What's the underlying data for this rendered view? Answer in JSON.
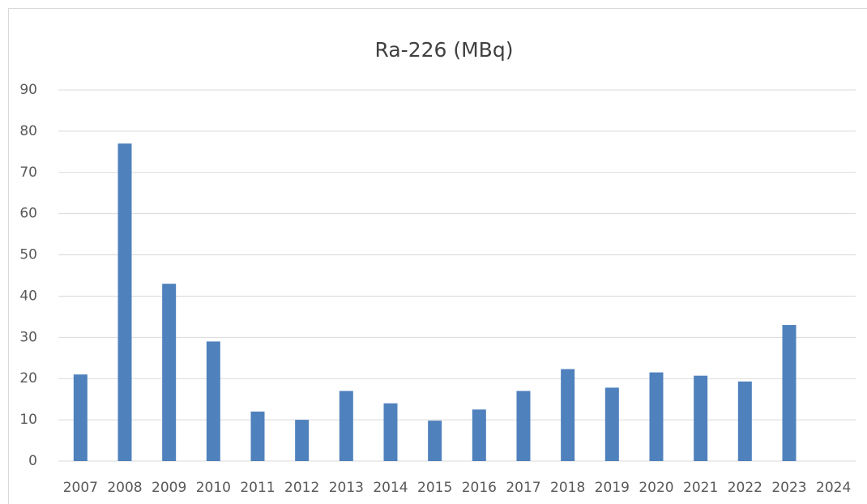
{
  "chart_data": {
    "type": "bar",
    "title": "Ra-226 (MBq)",
    "categories": [
      "2007",
      "2008",
      "2009",
      "2010",
      "2011",
      "2012",
      "2013",
      "2014",
      "2015",
      "2016",
      "2017",
      "2018",
      "2019",
      "2020",
      "2021",
      "2022",
      "2023",
      "2024"
    ],
    "values": [
      21,
      77,
      43,
      29,
      12,
      10,
      17,
      14,
      9.8,
      12.5,
      17,
      22.3,
      17.8,
      21.5,
      20.7,
      19.3,
      33,
      null
    ],
    "color": "#4f81bd",
    "ylim": [
      0,
      90
    ],
    "yticks": [
      0,
      10,
      20,
      30,
      40,
      50,
      60,
      70,
      80,
      90
    ],
    "grid": true
  }
}
